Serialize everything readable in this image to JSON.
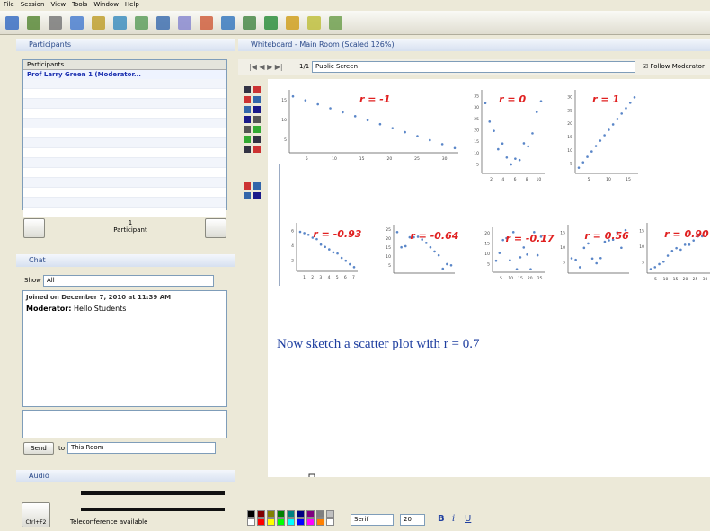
{
  "menu": [
    "File",
    "Session",
    "View",
    "Tools",
    "Window",
    "Help"
  ],
  "participants": {
    "title": "Participants",
    "column": "Participants",
    "rows": [
      "Prof Larry Green 1 (Moderator..."
    ],
    "count": "1",
    "count_label": "Participant"
  },
  "chat": {
    "title": "Chat",
    "show_label": "Show",
    "show_value": "All",
    "joined": "Joined on December 7, 2010 at 11:39 AM",
    "sender": "Moderator:",
    "message": "Hello Students",
    "send": "Send",
    "to_label": "to",
    "to_value": "This Room"
  },
  "audio": {
    "title": "Audio",
    "hotkey": "Ctrl+F2",
    "status": "Teleconference available"
  },
  "whiteboard": {
    "title": "Whiteboard - Main Room (Scaled 126%)",
    "page": "1/1",
    "screen": "Public Screen",
    "follow": "Follow Moderator",
    "plots": [
      {
        "label": "r = -1",
        "xticks": [
          "5",
          "10",
          "15",
          "20",
          "25",
          "30"
        ],
        "yticks": [
          "5",
          "10",
          "15"
        ]
      },
      {
        "label": "r = 0",
        "xticks": [
          "2",
          "4",
          "6",
          "8",
          "10"
        ],
        "yticks": [
          "5",
          "10",
          "15",
          "20",
          "25",
          "30",
          "35"
        ]
      },
      {
        "label": "r = 1",
        "xticks": [
          "5",
          "10",
          "15"
        ],
        "yticks": [
          "5",
          "10",
          "15",
          "20",
          "25",
          "30"
        ]
      },
      {
        "label": "r = -0.93",
        "xticks": [
          "1",
          "2",
          "3",
          "4",
          "5",
          "6",
          "7"
        ],
        "yticks": [
          "2",
          "4",
          "6"
        ]
      },
      {
        "label": "r = -0.64",
        "xticks": [],
        "yticks": [
          "5",
          "10",
          "15",
          "20",
          "25"
        ]
      },
      {
        "label": "r = -0.17",
        "xticks": [
          "5",
          "10",
          "15",
          "20",
          "25"
        ],
        "yticks": [
          "5",
          "10",
          "15",
          "20"
        ]
      },
      {
        "label": "r = 0.56",
        "xticks": [],
        "yticks": [
          "5",
          "10",
          "15"
        ]
      },
      {
        "label": "r = 0.90",
        "xticks": [
          "5",
          "10",
          "15",
          "20",
          "25",
          "30"
        ],
        "yticks": [
          "5",
          "10",
          "15"
        ]
      }
    ],
    "prompt": "Now sketch a scatter plot with r = 0.7"
  },
  "format": {
    "font": "Serif",
    "size": "20",
    "bold": "B",
    "italic": "i",
    "underline": "U"
  }
}
